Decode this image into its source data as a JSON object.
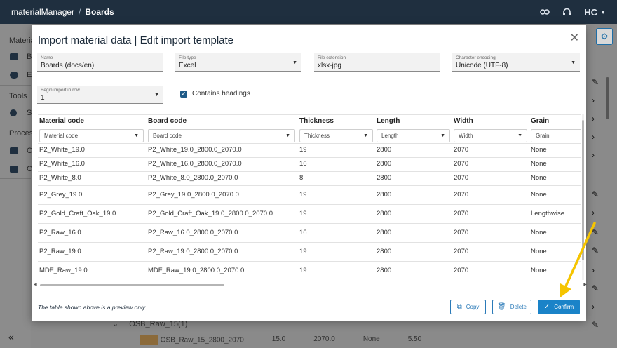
{
  "topbar": {
    "app": "materialManager",
    "separator": "/",
    "page": "Boards",
    "logo": "HC",
    "icons": [
      "link-icon",
      "headset-icon",
      "caret-down-icon"
    ]
  },
  "sidebar": {
    "items": [
      {
        "label": "Material",
        "icon": ""
      },
      {
        "label": "B",
        "icon": "monitor-icon"
      },
      {
        "label": "E",
        "icon": "eye-icon"
      },
      {
        "label": "Tools",
        "icon": ""
      },
      {
        "label": "S",
        "icon": "gear-icon"
      },
      {
        "label": "Process",
        "icon": ""
      },
      {
        "label": "C",
        "icon": "list-icon"
      },
      {
        "label": "C",
        "icon": "drawer-icon"
      }
    ],
    "collapse": "«"
  },
  "background": {
    "row_label": "OSB_Raw_15(1)",
    "row_partial": [
      "OSB_Raw_15_2800_2070",
      "15.0",
      "2070.0",
      "None",
      "5.50"
    ]
  },
  "modal": {
    "title": "Import material data | Edit import template",
    "close": "✕",
    "fields": {
      "name": {
        "label": "Name",
        "value": "Boards (docs/en)"
      },
      "file_type": {
        "label": "File type",
        "value": "Excel"
      },
      "file_extension": {
        "label": "File extension",
        "value": "xlsx-jpg"
      },
      "char_encoding": {
        "label": "Character encoding",
        "value": "Unicode (UTF-8)"
      },
      "begin_import": {
        "label": "Begin import in row",
        "value": "1"
      }
    },
    "contains_headings": {
      "label": "Contains headings",
      "checked": true
    },
    "table": {
      "columns": [
        "Material code",
        "Board code",
        "Thickness",
        "Length",
        "Width",
        "Grain"
      ],
      "mappings": [
        "Material code",
        "Board code",
        "Thickness",
        "Length",
        "Width",
        "Grain"
      ],
      "rows": [
        [
          "P2_White_19.0",
          "P2_White_19.0_2800.0_2070.0",
          "19",
          "2800",
          "2070",
          "None"
        ],
        [
          "P2_White_16.0",
          "P2_White_16.0_2800.0_2070.0",
          "16",
          "2800",
          "2070",
          "None"
        ],
        [
          "P2_White_8.0",
          "P2_White_8.0_2800.0_2070.0",
          "8",
          "2800",
          "2070",
          "None"
        ],
        [
          "P2_Grey_19.0",
          "P2_Grey_19.0_2800.0_2070.0",
          "19",
          "2800",
          "2070",
          "None"
        ],
        [
          "P2_Gold_Craft_Oak_19.0",
          "P2_Gold_Craft_Oak_19.0_2800.0_2070.0",
          "19",
          "2800",
          "2070",
          "Lengthwise"
        ],
        [
          "P2_Raw_16.0",
          "P2_Raw_16.0_2800.0_2070.0",
          "16",
          "2800",
          "2070",
          "None"
        ],
        [
          "P2_Raw_19.0",
          "P2_Raw_19.0_2800.0_2070.0",
          "19",
          "2800",
          "2070",
          "None"
        ],
        [
          "MDF_Raw_19.0",
          "MDF_Raw_19.0_2800.0_2070.0",
          "19",
          "2800",
          "2070",
          "None"
        ]
      ]
    },
    "preview_note": "The table shown above is a preview only.",
    "buttons": {
      "copy": "Copy",
      "delete": "Delete",
      "confirm": "Confirm"
    },
    "colors": {
      "primary": "#1a83c8",
      "annotation_arrow": "#f5c400"
    }
  }
}
